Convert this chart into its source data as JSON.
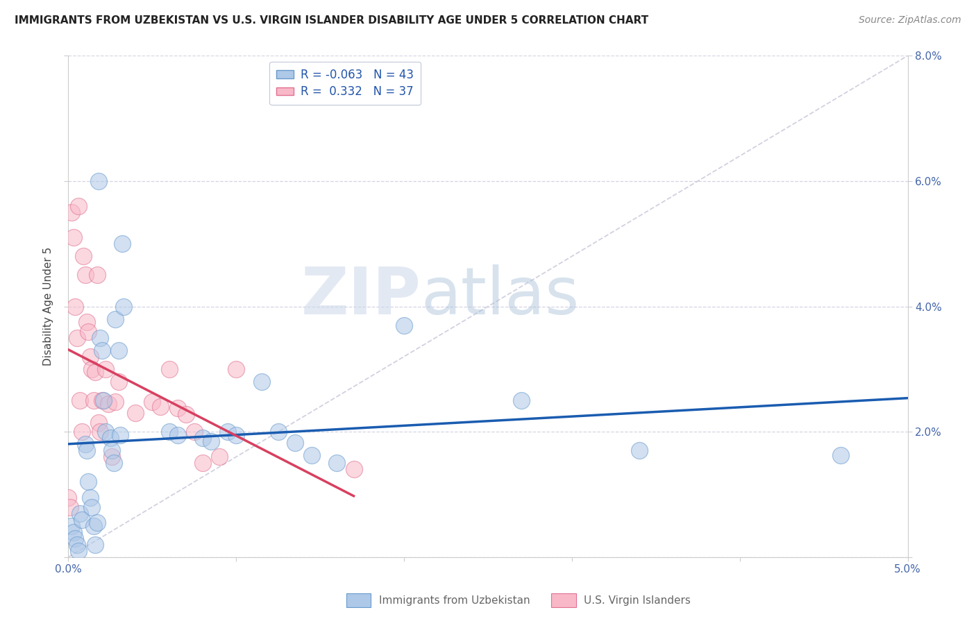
{
  "title": "IMMIGRANTS FROM UZBEKISTAN VS U.S. VIRGIN ISLANDER DISABILITY AGE UNDER 5 CORRELATION CHART",
  "source": "Source: ZipAtlas.com",
  "ylabel": "Disability Age Under 5",
  "xlim": [
    0.0,
    0.05
  ],
  "ylim": [
    0.0,
    0.08
  ],
  "xticks": [
    0.0,
    0.01,
    0.02,
    0.03,
    0.04,
    0.05
  ],
  "xtick_labels": [
    "0.0%",
    "",
    "",
    "",
    "",
    "5.0%"
  ],
  "yticks": [
    0.0,
    0.02,
    0.04,
    0.06,
    0.08
  ],
  "ytick_labels_left": [
    "",
    "",
    "",
    "",
    ""
  ],
  "ytick_labels_right": [
    "",
    "2.0%",
    "4.0%",
    "6.0%",
    "8.0%"
  ],
  "blue_fill": "#aec8e8",
  "blue_edge": "#6699cc",
  "pink_fill": "#f8b8c8",
  "pink_edge": "#e07090",
  "blue_line": "#1a5cb0",
  "pink_line": "#d84060",
  "diag_color": "#ccccdd",
  "R_blue": -0.063,
  "N_blue": 43,
  "R_pink": 0.332,
  "N_pink": 37,
  "blue_x": [
    0.0002,
    0.0003,
    0.0004,
    0.0005,
    0.0006,
    0.0007,
    0.0008,
    0.001,
    0.0011,
    0.0012,
    0.0013,
    0.0014,
    0.0015,
    0.0016,
    0.0017,
    0.0018,
    0.0019,
    0.002,
    0.0021,
    0.0022,
    0.0025,
    0.0026,
    0.0027,
    0.0028,
    0.003,
    0.0031,
    0.0032,
    0.0033,
    0.006,
    0.0065,
    0.008,
    0.0085,
    0.0095,
    0.01,
    0.0115,
    0.0125,
    0.0135,
    0.0145,
    0.016,
    0.02,
    0.027,
    0.034,
    0.046
  ],
  "blue_y": [
    0.005,
    0.004,
    0.003,
    0.002,
    0.001,
    0.007,
    0.006,
    0.018,
    0.017,
    0.012,
    0.0095,
    0.008,
    0.005,
    0.002,
    0.0055,
    0.06,
    0.035,
    0.033,
    0.025,
    0.02,
    0.019,
    0.017,
    0.015,
    0.038,
    0.033,
    0.0195,
    0.05,
    0.04,
    0.02,
    0.0195,
    0.019,
    0.0185,
    0.02,
    0.0195,
    0.028,
    0.02,
    0.0182,
    0.0162,
    0.015,
    0.037,
    0.025,
    0.017,
    0.0162
  ],
  "pink_x": [
    0.0,
    0.0001,
    0.0002,
    0.0003,
    0.0004,
    0.0005,
    0.0006,
    0.0007,
    0.0008,
    0.0009,
    0.001,
    0.0011,
    0.0012,
    0.0013,
    0.0014,
    0.0015,
    0.0016,
    0.0017,
    0.0018,
    0.0019,
    0.002,
    0.0022,
    0.0024,
    0.0026,
    0.0028,
    0.003,
    0.004,
    0.005,
    0.0055,
    0.006,
    0.0065,
    0.007,
    0.0075,
    0.008,
    0.009,
    0.01,
    0.017
  ],
  "pink_y": [
    0.0095,
    0.008,
    0.055,
    0.051,
    0.04,
    0.035,
    0.056,
    0.025,
    0.02,
    0.048,
    0.045,
    0.0375,
    0.036,
    0.032,
    0.03,
    0.025,
    0.0295,
    0.045,
    0.0215,
    0.02,
    0.025,
    0.03,
    0.0245,
    0.016,
    0.0248,
    0.028,
    0.023,
    0.0248,
    0.024,
    0.03,
    0.0238,
    0.0228,
    0.02,
    0.015,
    0.016,
    0.03,
    0.014
  ],
  "title_fontsize": 11,
  "source_fontsize": 10,
  "ylabel_fontsize": 11,
  "tick_fontsize": 11,
  "legend_fontsize": 12,
  "legend_label_blue": "R = -0.063   N = 43",
  "legend_label_pink": "R =  0.332   N = 37",
  "bottom_legend_blue": "Immigrants from Uzbekistan",
  "bottom_legend_pink": "U.S. Virgin Islanders",
  "grid_color": "#d4d4e4",
  "watermark_zip_color": "#ccd8e8",
  "watermark_atlas_color": "#b0c8dc"
}
